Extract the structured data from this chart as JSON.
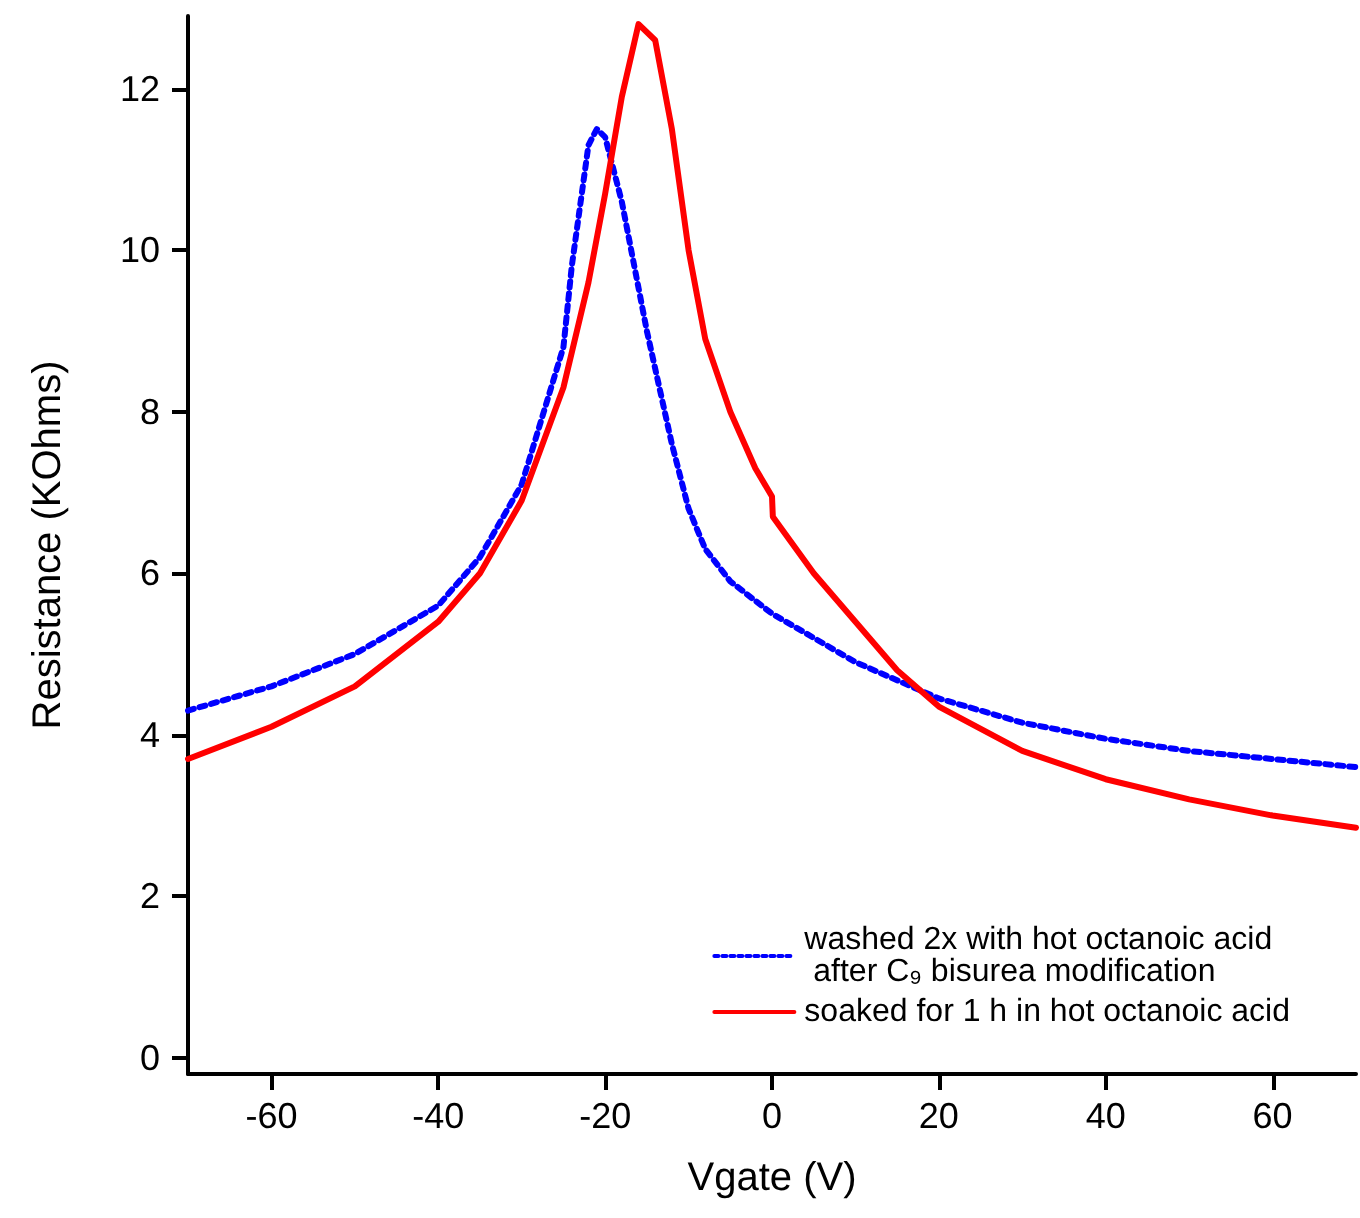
{
  "chart_data": {
    "type": "line",
    "xlabel": "Vgate (V)",
    "ylabel": "Resistance (KOhms)",
    "xlim": [
      -70,
      70
    ],
    "ylim": [
      -0.2,
      12.9
    ],
    "xticks": [
      -60,
      -40,
      -20,
      0,
      20,
      40,
      60
    ],
    "yticks": [
      0,
      2,
      4,
      6,
      8,
      10,
      12
    ],
    "grid": false,
    "legend": "bottom right",
    "marker": "none",
    "series": [
      {
        "name": "washed 2x with hot octanoic acid\n after C₉ bisurea modification",
        "color": "#0000ff",
        "line_style": "dotted",
        "x": [
          -70,
          -60,
          -50,
          -40,
          -35,
          -30,
          -25,
          -24,
          -22,
          -21,
          -20,
          -18,
          -15,
          -12,
          -10,
          -8,
          -5,
          0,
          5,
          10,
          20,
          30,
          40,
          50,
          60,
          70
        ],
        "values": [
          4.3,
          4.6,
          5.0,
          5.6,
          6.2,
          7.1,
          8.8,
          9.8,
          11.3,
          11.5,
          11.4,
          10.6,
          9.0,
          7.6,
          6.8,
          6.3,
          5.9,
          5.5,
          5.2,
          4.9,
          4.45,
          4.15,
          3.95,
          3.8,
          3.7,
          3.6
        ]
      },
      {
        "name": "soaked for 1 h in hot octanoic acid",
        "color": "#ff0000",
        "line_style": "solid",
        "x": [
          -70,
          -60,
          -50,
          -40,
          -35,
          -30,
          -25,
          -22,
          -20,
          -18,
          -16,
          -14,
          -12,
          -10,
          -8,
          -5,
          -2,
          0,
          0.1,
          5,
          10,
          15,
          20,
          30,
          40,
          50,
          60,
          70
        ],
        "values": [
          3.7,
          4.1,
          4.6,
          5.4,
          6.0,
          6.9,
          8.3,
          9.6,
          10.7,
          11.9,
          12.8,
          12.6,
          11.5,
          10.0,
          8.9,
          8.0,
          7.3,
          6.95,
          6.7,
          6.0,
          5.4,
          4.8,
          4.35,
          3.8,
          3.45,
          3.2,
          3.0,
          2.85
        ]
      }
    ]
  }
}
